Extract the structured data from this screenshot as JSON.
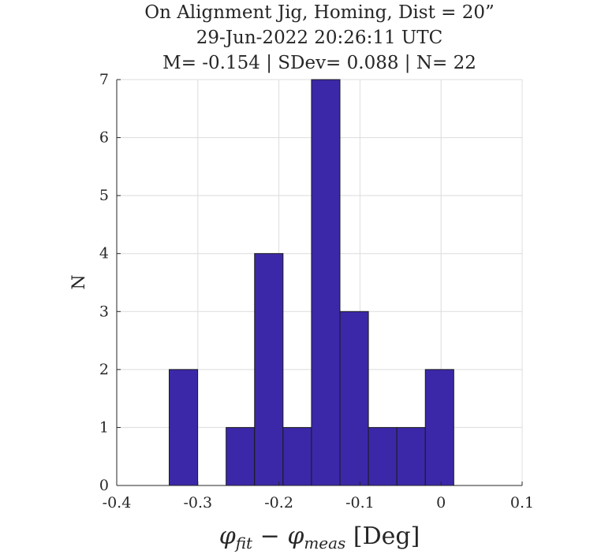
{
  "chart_data": {
    "type": "bar",
    "title_lines": [
      "On Alignment Jig, Homing, Dist = 20”",
      "29-Jun-2022 20:26:11 UTC",
      "M= -0.154 | SDev= 0.088 | N= 22"
    ],
    "xlabel": "φ_fit − φ_meas [Deg]",
    "ylabel": "N",
    "xlim": [
      -0.4,
      0.1
    ],
    "ylim": [
      0,
      7
    ],
    "x_ticks": [
      -0.4,
      -0.3,
      -0.2,
      -0.1,
      0,
      0.1
    ],
    "x_tick_labels": [
      "-0.4",
      "-0.3",
      "-0.2",
      "-0.1",
      "0",
      "0.1"
    ],
    "y_ticks": [
      0,
      1,
      2,
      3,
      4,
      5,
      6,
      7
    ],
    "y_tick_labels": [
      "0",
      "1",
      "2",
      "3",
      "4",
      "5",
      "6",
      "7"
    ],
    "bin_edges": [
      -0.3353,
      -0.3002,
      -0.2651,
      -0.23,
      -0.1949,
      -0.1598,
      -0.1247,
      -0.0896,
      -0.0545,
      -0.0194,
      0.0157
    ],
    "values": [
      2,
      0,
      1,
      4,
      1,
      7,
      3,
      1,
      1,
      2
    ],
    "bar_color": "#3b28a8",
    "grid": true
  }
}
